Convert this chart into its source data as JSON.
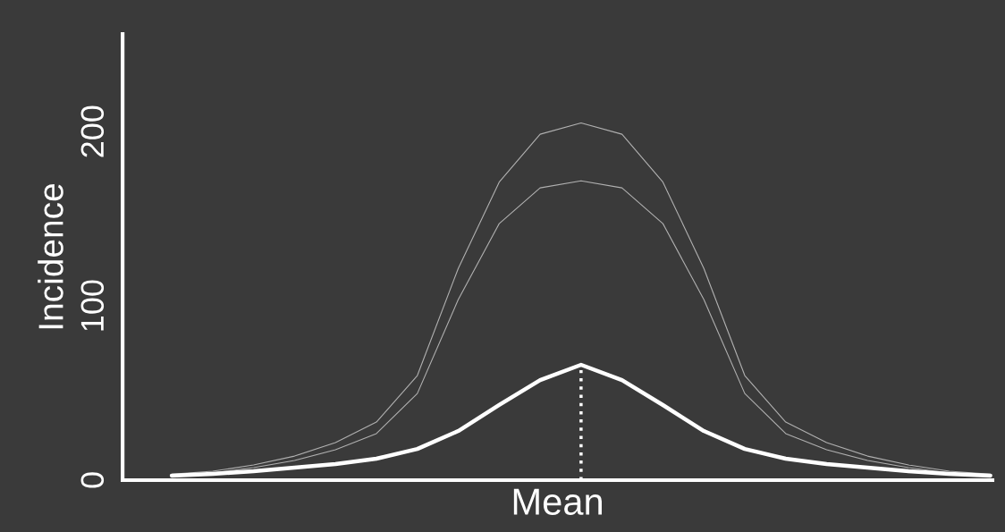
{
  "chart_data": {
    "type": "line",
    "xlabel": "Mean",
    "ylabel": "Incidence",
    "categories": [
      null,
      null,
      null,
      null,
      null,
      null,
      null,
      null,
      null,
      null,
      null,
      null,
      null,
      null,
      null,
      null,
      null,
      null,
      null,
      null,
      null
    ],
    "ylim": [
      0,
      256
    ],
    "yticks": [
      0,
      100,
      200
    ],
    "tick_labels": "y",
    "grid": false,
    "legend": false,
    "series": [
      {
        "color": "#b0b0b0",
        "line_style": "solid",
        "values": [
          3.4,
          5.1,
          8.7,
          13.8,
          21.5,
          33.3,
          60,
          121.5,
          171,
          198.5,
          205,
          198.5,
          171,
          121.5,
          60,
          33.3,
          21.5,
          13.8,
          8.7,
          5.1,
          3.4
        ]
      },
      {
        "color": "#b0b0b0",
        "line_style": "solid",
        "values": [
          1.8,
          4.1,
          7.2,
          11.3,
          17.4,
          26.7,
          49.7,
          103.6,
          147.2,
          167.7,
          171.8,
          167.7,
          147.2,
          103.6,
          49.7,
          26.7,
          17.4,
          11.3,
          7.2,
          4.1,
          1.8
        ]
      },
      {
        "color": "#ffffff",
        "line_style": "solid",
        "values": [
          2.6,
          3.6,
          5.1,
          7.2,
          9.2,
          12.3,
          17.9,
          28.2,
          43.1,
          57.4,
          66.2,
          57.4,
          43.1,
          28.2,
          17.9,
          12.3,
          9.2,
          7.2,
          5.1,
          3.6,
          2.6
        ]
      }
    ]
  }
}
